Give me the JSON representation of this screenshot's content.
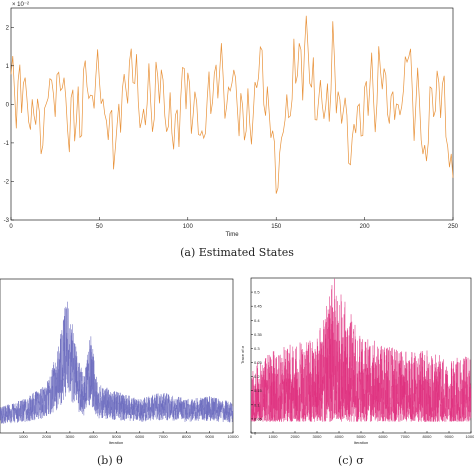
{
  "chart_data": [
    {
      "type": "line",
      "caption": "(a) Estimated States",
      "xlabel": "Time",
      "ylabel": "",
      "y_exponent": "× 10⁻²",
      "xlim": [
        0,
        250
      ],
      "ylim": [
        -3,
        2.5
      ],
      "xticks": [
        "0",
        "50",
        "100",
        "150",
        "200",
        "250"
      ],
      "yticks": [
        "-3",
        "-2",
        "-1",
        "0",
        "1",
        "2"
      ],
      "grid": false,
      "color": "#e8923a",
      "n_points": 250,
      "x": [
        0,
        8,
        17,
        25,
        33,
        42,
        50,
        58,
        67,
        75,
        83,
        92,
        100,
        108,
        117,
        125,
        133,
        142,
        150,
        158,
        167,
        175,
        183,
        192,
        200,
        208,
        217,
        225,
        233,
        242,
        250
      ],
      "values": [
        0.9,
        0.4,
        -0.9,
        1.2,
        -0.6,
        0.2,
        0.9,
        -1.4,
        1.6,
        -0.3,
        0.7,
        -1.0,
        0.8,
        -1.2,
        1.3,
        0.6,
        -0.9,
        1.5,
        -2.6,
        0.5,
        1.9,
        -0.4,
        1.3,
        -1.2,
        -0.1,
        1.1,
        -0.6,
        1.5,
        -1.6,
        0.9,
        -2.4
      ]
    },
    {
      "type": "line",
      "caption": "(b) θ",
      "xlabel": "Iteration",
      "ylabel": "",
      "xlim": [
        0,
        10000
      ],
      "xticks": [
        "1000",
        "2000",
        "3000",
        "4000",
        "5000",
        "6000",
        "7000",
        "8000",
        "9000",
        "10000"
      ],
      "grid": false,
      "color": "#6b6bbf",
      "n_points": 10000,
      "x": [
        0,
        1000,
        2000,
        2500,
        2900,
        3300,
        3600,
        3900,
        4200,
        5000,
        6000,
        7000,
        8000,
        9000,
        10000
      ],
      "values": [
        0.15,
        0.2,
        0.3,
        0.55,
        0.9,
        0.5,
        0.35,
        0.65,
        0.3,
        0.25,
        0.2,
        0.25,
        0.2,
        0.22,
        0.18
      ]
    },
    {
      "type": "line",
      "caption": "(c) σ",
      "xlabel": "Iteration",
      "ylabel": "Trace of σ",
      "xlim": [
        0,
        10000
      ],
      "ylim": [
        0,
        0.55
      ],
      "xticks": [
        "0",
        "1000",
        "2000",
        "3000",
        "4000",
        "5000",
        "6000",
        "7000",
        "8000",
        "9000",
        "10000"
      ],
      "yticks": [
        "0",
        "0.05",
        "0.1",
        "0.15",
        "0.2",
        "0.25",
        "0.3",
        "0.35",
        "0.4",
        "0.45",
        "0.5"
      ],
      "grid": false,
      "color": "#e0307f",
      "n_points": 10000,
      "x": [
        0,
        1000,
        2000,
        3000,
        3800,
        5000,
        6000,
        7000,
        8000,
        9000,
        10000
      ],
      "values": [
        0.2,
        0.25,
        0.28,
        0.3,
        0.52,
        0.3,
        0.28,
        0.25,
        0.26,
        0.22,
        0.24
      ]
    }
  ]
}
